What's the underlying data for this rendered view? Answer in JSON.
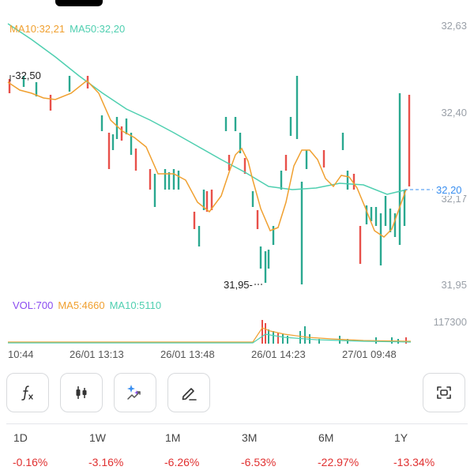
{
  "legend": {
    "ma10": "MA10:32,21",
    "ma50": "MA50:32,20"
  },
  "price_axis": {
    "labels": [
      "32,63",
      "32,40",
      "32,17",
      "31,95"
    ],
    "current": "32,20"
  },
  "markers": {
    "high": "32,50",
    "low": "31,95"
  },
  "volume_legend": {
    "vol": "VOL:700",
    "ma5": "MA5:4660",
    "ma10": "MA10:5110",
    "axis_max": "117300"
  },
  "time_axis": [
    "10:44",
    "26/01 13:13",
    "26/01 13:48",
    "26/01 14:23",
    "27/01 09:48"
  ],
  "tools": [
    {
      "icon": "function-icon"
    },
    {
      "icon": "candlestick-icon"
    },
    {
      "icon": "magic-sparkle-icon"
    },
    {
      "icon": "draw-pen-icon"
    },
    {
      "icon": "fullscreen-scan-icon"
    }
  ],
  "periods": [
    {
      "label": "1D",
      "change": "-0.16%"
    },
    {
      "label": "1W",
      "change": "-3.16%"
    },
    {
      "label": "1M",
      "change": "-6.26%"
    },
    {
      "label": "3M",
      "change": "-6.53%"
    },
    {
      "label": "6M",
      "change": "-22.97%"
    },
    {
      "label": "1Y",
      "change": "-13.34%"
    }
  ],
  "colors": {
    "up": "#2aa890",
    "down": "#e8504a",
    "ma10": "#f0a030",
    "ma50": "#4fcfb0",
    "current": "#3a8ff0",
    "negative": "#e03030"
  }
}
